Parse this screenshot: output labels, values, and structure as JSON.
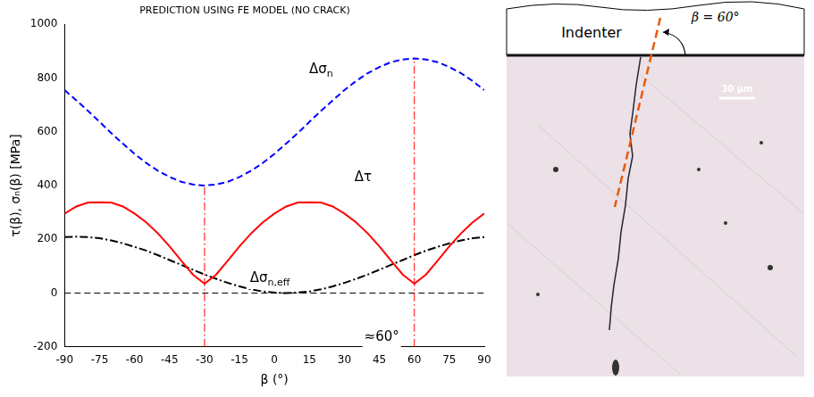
{
  "chart_data": {
    "type": "line",
    "title": "PREDICTION USING FE MODEL (NO CRACK)",
    "x_label": "β (°)",
    "y_label": "τ(β), σₙ(β) [MPa]",
    "xlim": [
      -90,
      90
    ],
    "xticks": [
      -90,
      -75,
      -60,
      -45,
      -30,
      -15,
      0,
      15,
      30,
      45,
      60,
      75,
      90
    ],
    "ylim": [
      -200,
      1000
    ],
    "yticks": [
      -200,
      0,
      200,
      400,
      600,
      800,
      1000
    ],
    "grid": false,
    "x": [
      -90,
      -85,
      -80,
      -75,
      -70,
      -65,
      -60,
      -55,
      -50,
      -45,
      -40,
      -35,
      -30,
      -25,
      -20,
      -15,
      -10,
      -5,
      0,
      5,
      10,
      15,
      20,
      25,
      30,
      35,
      40,
      45,
      50,
      55,
      60,
      65,
      70,
      75,
      80,
      85,
      90
    ],
    "series": [
      {
        "color": "#0000ff",
        "line_style": "dashed",
        "values": [
          755,
          717,
          678,
          637,
          595,
          556,
          518,
          484,
          455,
          432,
          414,
          404,
          400,
          404,
          414,
          432,
          455,
          484,
          518,
          556,
          595,
          637,
          678,
          717,
          755,
          789,
          818,
          841,
          859,
          869,
          873,
          869,
          859,
          841,
          818,
          789,
          755
        ]
      },
      {
        "color": "#ff0000",
        "line_style": "solid",
        "values": [
          296,
          322,
          337,
          338,
          337,
          322,
          296,
          263,
          222,
          174,
          121,
          69,
          35,
          69,
          121,
          174,
          222,
          263,
          296,
          322,
          337,
          338,
          337,
          322,
          296,
          263,
          222,
          174,
          121,
          69,
          35,
          69,
          121,
          174,
          222,
          263,
          296
        ]
      },
      {
        "color": "#000000",
        "line_style": "dashdot",
        "values": [
          208,
          210,
          208,
          204,
          196,
          185,
          172,
          158,
          141,
          123,
          105,
          87,
          69,
          53,
          38,
          25,
          14,
          6,
          2,
          0,
          2,
          6,
          14,
          25,
          38,
          53,
          69,
          87,
          105,
          123,
          141,
          158,
          172,
          185,
          196,
          204,
          208
        ]
      }
    ],
    "annotations": [
      {
        "text": "Δσ",
        "sub": "n",
        "x": 20,
        "y": 830,
        "color": "#000000"
      },
      {
        "text": "Δτ",
        "sub": "",
        "x": 38,
        "y": 430,
        "color": "#000000"
      },
      {
        "text": "Δσ",
        "sub": "n,eff",
        "x": -2,
        "y": 55,
        "color": "#000000"
      },
      {
        "text": "≈60°",
        "sub": "",
        "x": 46,
        "y": -165,
        "color": "#000000"
      }
    ],
    "vlines": [
      {
        "x": -30,
        "y": [
          -200,
          400
        ],
        "color": "#ff0000",
        "line_style": "dashdot"
      },
      {
        "x": 60,
        "y": [
          -200,
          873
        ],
        "color": "#ff0000",
        "line_style": "dashdot"
      }
    ],
    "hlines": [
      {
        "y": 0,
        "x": [
          -90,
          90
        ],
        "color": "#000000",
        "line_style": "dashed"
      }
    ]
  },
  "photo": {
    "indenter_label": "Indenter",
    "angle_label": "β = 60°",
    "scale_label": "30 μm"
  }
}
